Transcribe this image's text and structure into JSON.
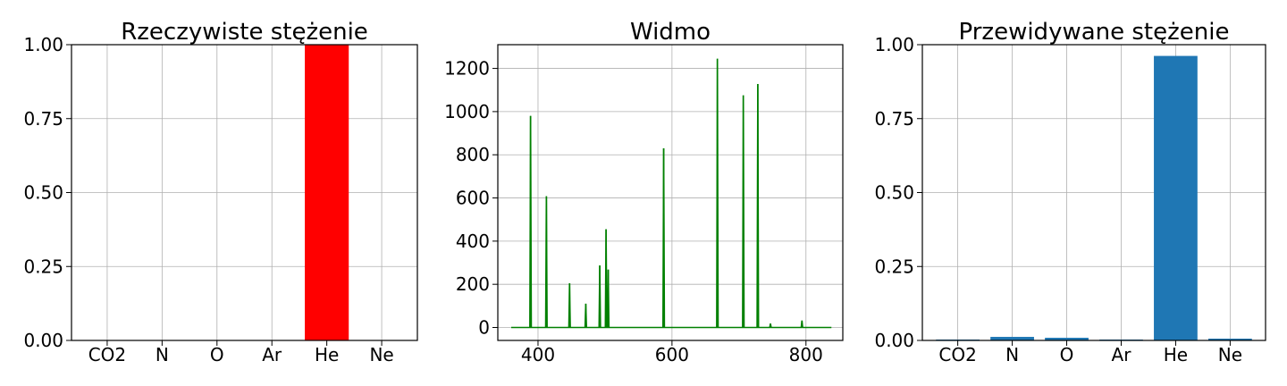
{
  "chart_data": [
    {
      "type": "bar",
      "title": "Rzeczywiste stężenie",
      "categories": [
        "CO2",
        "N",
        "O",
        "Ar",
        "He",
        "Ne"
      ],
      "values": [
        0,
        0,
        0,
        0,
        1.0,
        0
      ],
      "ylim": [
        0,
        1.0
      ],
      "yticks": [
        "0.00",
        "0.25",
        "0.50",
        "0.75",
        "1.00"
      ],
      "bar_color": "#ff0000",
      "grid": true
    },
    {
      "type": "line",
      "title": "Widmo",
      "xlim": [
        340,
        855
      ],
      "ylim": [
        -60,
        1310
      ],
      "xticks": [
        "400",
        "600",
        "800"
      ],
      "yticks": [
        "0",
        "200",
        "400",
        "600",
        "800",
        "1000",
        "1200"
      ],
      "line_color": "#008000",
      "x_start": 360,
      "x_end": 838,
      "peaks": [
        {
          "x": 388.9,
          "y": 980
        },
        {
          "x": 412.5,
          "y": 608
        },
        {
          "x": 447.1,
          "y": 205
        },
        {
          "x": 471.3,
          "y": 110
        },
        {
          "x": 492.2,
          "y": 287
        },
        {
          "x": 501.6,
          "y": 455
        },
        {
          "x": 504.8,
          "y": 268
        },
        {
          "x": 587.6,
          "y": 830
        },
        {
          "x": 667.8,
          "y": 1245
        },
        {
          "x": 706.5,
          "y": 1075
        },
        {
          "x": 728.1,
          "y": 1128
        },
        {
          "x": 747.0,
          "y": 18
        },
        {
          "x": 794.0,
          "y": 32
        }
      ],
      "grid": true
    },
    {
      "type": "bar",
      "title": "Przewidywane stężenie",
      "categories": [
        "CO2",
        "N",
        "O",
        "Ar",
        "He",
        "Ne"
      ],
      "values": [
        0.003,
        0.012,
        0.009,
        0.003,
        0.962,
        0.006
      ],
      "ylim": [
        0,
        1.0
      ],
      "yticks": [
        "0.00",
        "0.25",
        "0.50",
        "0.75",
        "1.00"
      ],
      "bar_color": "#1f77b4",
      "grid": true
    }
  ]
}
